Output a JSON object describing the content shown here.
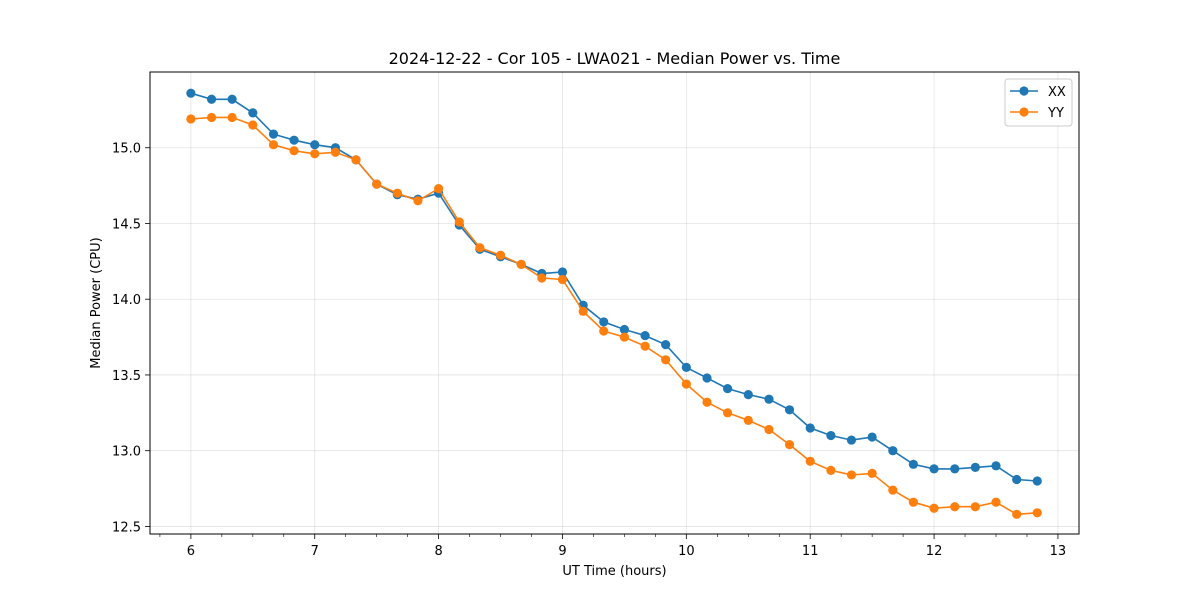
{
  "chart_data": {
    "type": "line",
    "title": "2024-12-22 - Cor 105 - LWA021 - Median Power vs. Time",
    "xlabel": "UT Time (hours)",
    "ylabel": "Median Power (CPU)",
    "xlim": [
      5.67,
      13.17
    ],
    "ylim": [
      12.45,
      15.5
    ],
    "xticks": [
      6,
      7,
      8,
      9,
      10,
      11,
      12,
      13
    ],
    "xtick_labels": [
      "6",
      "7",
      "8",
      "9",
      "10",
      "11",
      "12",
      "13"
    ],
    "xminor_step": 0.25,
    "yticks": [
      12.5,
      13.0,
      13.5,
      14.0,
      14.5,
      15.0
    ],
    "ytick_labels": [
      "12.5",
      "13.0",
      "13.5",
      "14.0",
      "14.5",
      "15.0"
    ],
    "grid": true,
    "legend_position": "top-right",
    "x": [
      6.0,
      6.167,
      6.333,
      6.5,
      6.667,
      6.833,
      7.0,
      7.167,
      7.333,
      7.5,
      7.667,
      7.833,
      8.0,
      8.167,
      8.333,
      8.5,
      8.667,
      8.833,
      9.0,
      9.167,
      9.333,
      9.5,
      9.667,
      9.833,
      10.0,
      10.167,
      10.333,
      10.5,
      10.667,
      10.833,
      11.0,
      11.167,
      11.333,
      11.5,
      11.667,
      11.833,
      12.0,
      12.167,
      12.333,
      12.5,
      12.667,
      12.833
    ],
    "series": [
      {
        "name": "XX",
        "color": "#1f77b4",
        "values": [
          15.36,
          15.32,
          15.32,
          15.23,
          15.09,
          15.05,
          15.02,
          15.0,
          14.92,
          14.76,
          14.69,
          14.66,
          14.7,
          14.49,
          14.33,
          14.28,
          14.23,
          14.17,
          14.18,
          13.96,
          13.85,
          13.8,
          13.76,
          13.7,
          13.55,
          13.48,
          13.41,
          13.37,
          13.34,
          13.27,
          13.15,
          13.1,
          13.07,
          13.09,
          13.0,
          12.91,
          12.88,
          12.88,
          12.89,
          12.9,
          12.81,
          12.8
        ]
      },
      {
        "name": "YY",
        "color": "#ff7f0e",
        "values": [
          15.19,
          15.2,
          15.2,
          15.15,
          15.02,
          14.98,
          14.96,
          14.97,
          14.92,
          14.76,
          14.7,
          14.65,
          14.73,
          14.51,
          14.34,
          14.29,
          14.23,
          14.14,
          14.13,
          13.92,
          13.79,
          13.75,
          13.69,
          13.6,
          13.44,
          13.32,
          13.25,
          13.2,
          13.14,
          13.04,
          12.93,
          12.87,
          12.84,
          12.85,
          12.74,
          12.66,
          12.62,
          12.63,
          12.63,
          12.66,
          12.58,
          12.59
        ]
      }
    ]
  }
}
